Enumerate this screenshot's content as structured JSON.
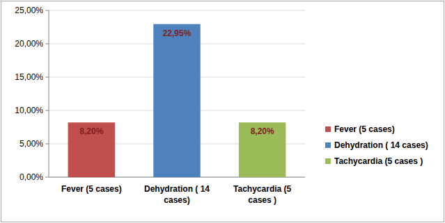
{
  "chart_data": {
    "type": "bar",
    "categories": [
      "Fever (5 cases)",
      "Dehydration ( 14 cases)",
      "Tachycardia (5 cases )"
    ],
    "values": [
      8.2,
      22.95,
      8.2
    ],
    "value_labels": [
      "8,20%",
      "22,95%",
      "8,20%"
    ],
    "colors": [
      "#c0504d",
      "#4f81bd",
      "#9bbb59"
    ],
    "ylim": [
      0,
      25
    ],
    "yticks": [
      {
        "value": 0,
        "label": "0,00%"
      },
      {
        "value": 5,
        "label": "5,00%"
      },
      {
        "value": 10,
        "label": "10,00%"
      },
      {
        "value": 15,
        "label": "15,00%"
      },
      {
        "value": 20,
        "label": "20,00%"
      },
      {
        "value": 25,
        "label": "25,00%"
      }
    ],
    "grid": true,
    "data_labels": true,
    "legend": "right"
  }
}
